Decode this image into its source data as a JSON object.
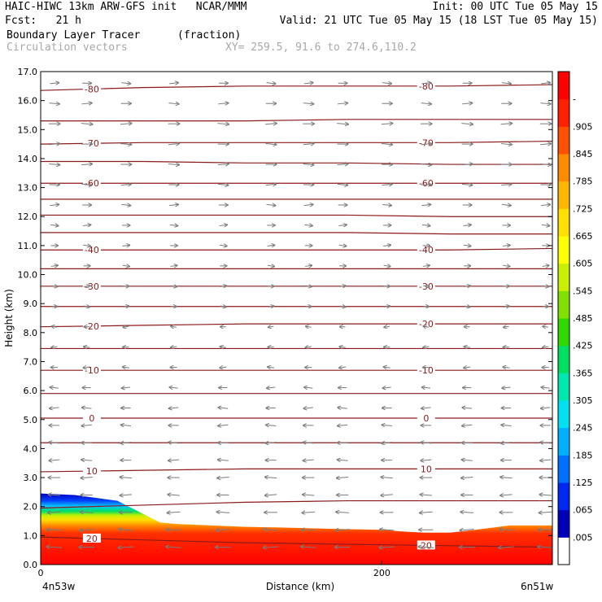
{
  "header": {
    "left_line1": "HAIC-HIWC 13km ARW-GFS init   NCAR/MMM",
    "left_line2": "Fcst:   21 h",
    "right_line1": "Init: 00 UTC Tue 05 May 15",
    "right_line2": "Valid: 21 UTC Tue 05 May 15 (18 LST Tue 05 May 15)",
    "field_name": "Boundary Layer Tracer",
    "field_units": "(fraction)",
    "vector_label": "Circulation vectors",
    "xy_label": "XY= 259.5, 91.6 to 274.6,110.2"
  },
  "chart_data": {
    "type": "heatmap",
    "title": "Boundary Layer Tracer (fraction)",
    "xlabel": "Distance (km)",
    "ylabel": "Height (km)",
    "xlim": [
      0,
      300
    ],
    "ylim": [
      0,
      17
    ],
    "x_ticks": [
      {
        "value": 0,
        "label": "0"
      },
      {
        "value": 200,
        "label": "200"
      }
    ],
    "x_end_labels": {
      "left": "4n53w",
      "right": "6n51w"
    },
    "y_ticks": [
      {
        "value": 0,
        "label": "0.0"
      },
      {
        "value": 1,
        "label": "1.0"
      },
      {
        "value": 2,
        "label": "2.0"
      },
      {
        "value": 3,
        "label": "3.0"
      },
      {
        "value": 4,
        "label": "4.0"
      },
      {
        "value": 5,
        "label": "5.0"
      },
      {
        "value": 6,
        "label": "6.0"
      },
      {
        "value": 7,
        "label": "7.0"
      },
      {
        "value": 8,
        "label": "8.0"
      },
      {
        "value": 9,
        "label": "9.0"
      },
      {
        "value": 10,
        "label": "10.0"
      },
      {
        "value": 11,
        "label": "11.0"
      },
      {
        "value": 12,
        "label": "12.0"
      },
      {
        "value": 13,
        "label": "13.0"
      },
      {
        "value": 14,
        "label": "14.0"
      },
      {
        "value": 15,
        "label": "15.0"
      },
      {
        "value": 16,
        "label": "16.0"
      },
      {
        "value": 17,
        "label": "17.0"
      }
    ],
    "tracer_top_km": {
      "x": [
        0,
        20,
        45,
        65,
        70,
        80,
        100,
        120,
        140,
        160,
        180,
        200,
        210,
        225,
        240,
        255,
        275,
        300
      ],
      "top": [
        2.45,
        2.4,
        2.2,
        1.6,
        1.45,
        1.4,
        1.35,
        1.3,
        1.28,
        1.25,
        1.22,
        1.2,
        1.15,
        1.1,
        1.1,
        1.2,
        1.35,
        1.35
      ]
    },
    "colorbar": {
      "labels": [
        ".005",
        ".065",
        ".125",
        ".185",
        ".245",
        ".305",
        ".365",
        ".425",
        ".485",
        ".545",
        ".605",
        ".665",
        ".725",
        ".785",
        ".845",
        ".905",
        "-"
      ],
      "colors": [
        "#ffffff",
        "#0000b8",
        "#0028f0",
        "#0070ff",
        "#00b0ff",
        "#00e0f0",
        "#00e8b0",
        "#00e060",
        "#30d800",
        "#80e000",
        "#c8f000",
        "#ffff00",
        "#ffe000",
        "#ffb800",
        "#ff8c00",
        "#ff5000",
        "#ff2000",
        "#ff0000"
      ]
    },
    "temperature_contours": [
      {
        "label": "-80",
        "y": [
          16.35,
          16.45,
          16.5,
          16.5,
          16.5,
          16.55
        ]
      },
      {
        "label": "",
        "y": [
          15.3,
          15.3,
          15.3,
          15.35,
          15.35,
          15.35
        ]
      },
      {
        "label": "-70",
        "y": [
          14.5,
          14.55,
          14.55,
          14.55,
          14.55,
          14.6
        ]
      },
      {
        "label": "",
        "y": [
          13.9,
          13.9,
          13.85,
          13.85,
          13.8,
          13.8
        ]
      },
      {
        "label": "-60",
        "y": [
          13.15,
          13.15,
          13.15,
          13.15,
          13.15,
          13.15
        ]
      },
      {
        "label": "",
        "y": [
          12.6,
          12.6,
          12.6,
          12.6,
          12.6,
          12.6
        ]
      },
      {
        "label": "",
        "y": [
          12.05,
          12.05,
          12.05,
          12.05,
          12.0,
          12.0
        ]
      },
      {
        "label": "",
        "y": [
          11.45,
          11.45,
          11.45,
          11.45,
          11.4,
          11.4
        ]
      },
      {
        "label": "-40",
        "y": [
          10.85,
          10.85,
          10.85,
          10.85,
          10.85,
          10.9
        ]
      },
      {
        "label": "",
        "y": [
          10.2,
          10.2,
          10.2,
          10.2,
          10.2,
          10.2
        ]
      },
      {
        "label": "-30",
        "y": [
          9.6,
          9.6,
          9.6,
          9.6,
          9.6,
          9.6
        ]
      },
      {
        "label": "",
        "y": [
          8.9,
          8.9,
          8.9,
          8.9,
          8.9,
          8.9
        ]
      },
      {
        "label": "-20",
        "y": [
          8.2,
          8.25,
          8.3,
          8.3,
          8.3,
          8.3
        ]
      },
      {
        "label": "",
        "y": [
          7.45,
          7.45,
          7.45,
          7.45,
          7.45,
          7.45
        ]
      },
      {
        "label": "-10",
        "y": [
          6.7,
          6.7,
          6.7,
          6.7,
          6.7,
          6.7
        ]
      },
      {
        "label": "",
        "y": [
          5.9,
          5.9,
          5.9,
          5.9,
          5.9,
          5.9
        ]
      },
      {
        "label": "0",
        "y": [
          5.05,
          5.05,
          5.05,
          5.05,
          5.05,
          5.05
        ]
      },
      {
        "label": "",
        "y": [
          4.2,
          4.2,
          4.2,
          4.2,
          4.2,
          4.2
        ]
      },
      {
        "label": "10",
        "y": [
          3.2,
          3.25,
          3.3,
          3.3,
          3.3,
          3.3
        ]
      },
      {
        "label": "",
        "y": [
          1.95,
          2.05,
          2.15,
          2.2,
          2.2,
          2.2
        ]
      },
      {
        "label": "20",
        "y": [
          0.95,
          0.85,
          0.75,
          0.7,
          0.65,
          0.6
        ]
      }
    ],
    "contour_x": [
      0,
      60,
      120,
      180,
      240,
      300
    ],
    "contour_label_positions": {
      "a": 30,
      "b": 226
    },
    "vectors": {
      "columns_km": [
        8,
        27,
        50,
        78,
        107,
        135,
        157,
        177,
        203,
        226,
        250,
        273,
        296
      ],
      "rows_km": [
        0.6,
        1.2,
        1.8,
        2.4,
        3.0,
        3.6,
        4.2,
        4.8,
        5.4,
        6.1,
        6.8,
        7.5,
        8.2,
        8.9,
        9.6,
        10.3,
        11.0,
        11.7,
        12.4,
        13.1,
        13.8,
        14.5,
        15.2,
        15.9,
        16.6
      ],
      "u_by_row": [
        -0.9,
        -0.8,
        -0.7,
        -0.6,
        -0.6,
        -0.5,
        -0.5,
        -0.45,
        -0.4,
        -0.3,
        -0.15,
        -0.1,
        -0.05,
        0.05,
        0.1,
        0.15,
        0.2,
        0.25,
        0.35,
        0.45,
        0.5,
        0.5,
        0.55,
        0.45,
        0.35
      ]
    }
  }
}
